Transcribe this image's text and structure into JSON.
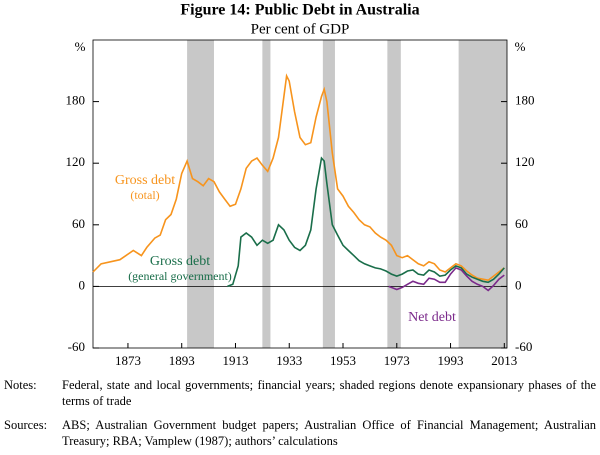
{
  "chart_data": {
    "type": "line",
    "title": "Figure 14: Public Debt in Australia",
    "subtitle": "Per cent of GDP",
    "y_unit": "%",
    "xlim": [
      1860,
      2014
    ],
    "xticks": [
      1873,
      1893,
      1913,
      1933,
      1953,
      1973,
      1993,
      2013
    ],
    "ylim": [
      -60,
      240
    ],
    "yticks": [
      -60,
      0,
      60,
      120,
      180
    ],
    "grid": false,
    "shaded_regions": [
      [
        1895,
        1905
      ],
      [
        1923,
        1926
      ],
      [
        1945.5,
        1950
      ],
      [
        1969.5,
        1974.5
      ],
      [
        1996,
        2014
      ]
    ],
    "shade_color": "#c8c8c8",
    "series": [
      {
        "name": "Gross debt",
        "note": "(total)",
        "color": "#f7941d",
        "x": [
          1860,
          1863,
          1870,
          1875,
          1878,
          1880,
          1883,
          1885,
          1887,
          1889,
          1891,
          1893,
          1895,
          1897,
          1899,
          1901,
          1903,
          1905,
          1907,
          1909,
          1911,
          1913,
          1915,
          1917,
          1919,
          1921,
          1923,
          1925,
          1927,
          1929,
          1931,
          1932,
          1933,
          1935,
          1937,
          1939,
          1941,
          1943,
          1945,
          1946,
          1947,
          1949,
          1951,
          1953,
          1955,
          1957,
          1959,
          1961,
          1963,
          1965,
          1967,
          1969,
          1971,
          1973,
          1975,
          1977,
          1979,
          1981,
          1983,
          1985,
          1987,
          1989,
          1991,
          1993,
          1995,
          1997,
          1999,
          2001,
          2003,
          2005,
          2007,
          2009,
          2011,
          2013
        ],
        "values": [
          14,
          22,
          26,
          35,
          30,
          38,
          47,
          50,
          65,
          70,
          85,
          110,
          122,
          105,
          102,
          98,
          105,
          102,
          92,
          85,
          78,
          80,
          95,
          115,
          122,
          125,
          118,
          112,
          125,
          145,
          185,
          205,
          200,
          170,
          145,
          138,
          140,
          165,
          185,
          192,
          180,
          130,
          95,
          88,
          78,
          72,
          65,
          60,
          58,
          52,
          48,
          45,
          40,
          30,
          28,
          30,
          26,
          22,
          20,
          24,
          22,
          16,
          14,
          18,
          22,
          20,
          15,
          11,
          8,
          7,
          6,
          10,
          14,
          18
        ]
      },
      {
        "name": "Gross debt",
        "note": "(general government)",
        "color": "#1a6e4a",
        "x": [
          1910,
          1912,
          1914,
          1915,
          1917,
          1919,
          1921,
          1923,
          1925,
          1927,
          1929,
          1931,
          1933,
          1935,
          1937,
          1939,
          1941,
          1943,
          1945,
          1946,
          1947,
          1949,
          1951,
          1953,
          1955,
          1957,
          1959,
          1961,
          1963,
          1965,
          1967,
          1969,
          1971,
          1973,
          1975,
          1977,
          1979,
          1981,
          1983,
          1985,
          1987,
          1989,
          1991,
          1993,
          1995,
          1997,
          1999,
          2001,
          2003,
          2005,
          2007,
          2009,
          2011,
          2013
        ],
        "values": [
          0,
          2,
          20,
          48,
          52,
          48,
          40,
          45,
          42,
          45,
          60,
          55,
          45,
          38,
          35,
          40,
          55,
          95,
          125,
          122,
          100,
          60,
          50,
          40,
          35,
          30,
          25,
          22,
          20,
          18,
          17,
          15,
          12,
          10,
          12,
          15,
          16,
          12,
          11,
          16,
          14,
          10,
          11,
          16,
          20,
          18,
          12,
          9,
          7,
          5,
          4,
          7,
          12,
          18
        ]
      },
      {
        "name": "Net debt",
        "color": "#7b2a8b",
        "x": [
          1970,
          1973,
          1975,
          1977,
          1979,
          1981,
          1983,
          1985,
          1987,
          1989,
          1991,
          1993,
          1995,
          1997,
          1999,
          2001,
          2003,
          2005,
          2007,
          2009,
          2011,
          2013
        ],
        "values": [
          0,
          -3,
          -1,
          2,
          5,
          3,
          2,
          8,
          7,
          4,
          4,
          12,
          18,
          16,
          10,
          5,
          2,
          0,
          -4,
          1,
          7,
          11
        ]
      }
    ]
  },
  "notes": {
    "label": "Notes:",
    "text": "Federal, state and local governments; financial years; shaded regions denote expansionary phases of the terms of trade"
  },
  "sources": {
    "label": "Sources:",
    "text": "ABS; Australian Government budget papers; Australian Office of Financial Management; Australian Treasury; RBA; Vamplew (1987); authors’ calculations"
  }
}
